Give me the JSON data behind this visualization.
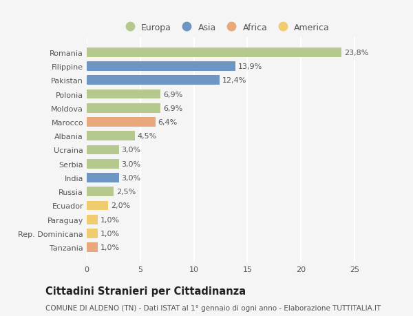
{
  "categories": [
    "Romania",
    "Filippine",
    "Pakistan",
    "Polonia",
    "Moldova",
    "Marocco",
    "Albania",
    "Ucraina",
    "Serbia",
    "India",
    "Russia",
    "Ecuador",
    "Paraguay",
    "Rep. Dominicana",
    "Tanzania"
  ],
  "values": [
    23.8,
    13.9,
    12.4,
    6.9,
    6.9,
    6.4,
    4.5,
    3.0,
    3.0,
    3.0,
    2.5,
    2.0,
    1.0,
    1.0,
    1.0
  ],
  "labels": [
    "23,8%",
    "13,9%",
    "12,4%",
    "6,9%",
    "6,9%",
    "6,4%",
    "4,5%",
    "3,0%",
    "3,0%",
    "3,0%",
    "2,5%",
    "2,0%",
    "1,0%",
    "1,0%",
    "1,0%"
  ],
  "colors": [
    "#b5c98e",
    "#6e96c4",
    "#6e96c4",
    "#b5c98e",
    "#b5c98e",
    "#e8a87c",
    "#b5c98e",
    "#b5c98e",
    "#b5c98e",
    "#6e96c4",
    "#b5c98e",
    "#f0cc6e",
    "#f0cc6e",
    "#f0cc6e",
    "#e8a87c"
  ],
  "legend_labels": [
    "Europa",
    "Asia",
    "Africa",
    "America"
  ],
  "legend_colors": [
    "#b5c98e",
    "#6e96c4",
    "#e8a87c",
    "#f0cc6e"
  ],
  "title": "Cittadini Stranieri per Cittadinanza",
  "subtitle": "COMUNE DI ALDENO (TN) - Dati ISTAT al 1° gennaio di ogni anno - Elaborazione TUTTITALIA.IT",
  "xlim": [
    0,
    27
  ],
  "xticks": [
    0,
    5,
    10,
    15,
    20,
    25
  ],
  "background_color": "#f5f5f5",
  "bar_height": 0.68,
  "label_fontsize": 8.0,
  "tick_fontsize": 8.0,
  "title_fontsize": 10.5,
  "subtitle_fontsize": 7.5,
  "legend_fontsize": 9.0
}
